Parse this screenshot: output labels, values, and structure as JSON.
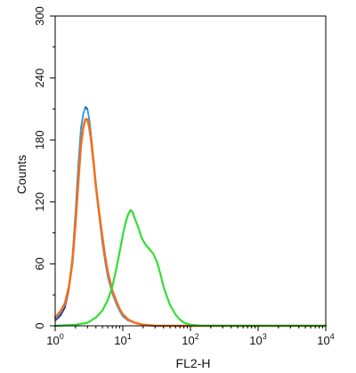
{
  "chart_data": {
    "type": "line",
    "title": "",
    "xlabel": "FL2-H",
    "ylabel": "Counts",
    "xscale": "log",
    "xlim": [
      1,
      10000
    ],
    "ylim": [
      0,
      300
    ],
    "grid": false,
    "x_ticks": [
      {
        "base": "10",
        "exp": "0",
        "value": 1
      },
      {
        "base": "10",
        "exp": "1",
        "value": 10
      },
      {
        "base": "10",
        "exp": "2",
        "value": 100
      },
      {
        "base": "10",
        "exp": "3",
        "value": 1000
      },
      {
        "base": "10",
        "exp": "4",
        "value": 10000
      }
    ],
    "y_ticks": [
      "0",
      "60",
      "120",
      "180",
      "240",
      "300"
    ],
    "series": [
      {
        "color": "#000080",
        "stroke_width": 1.4,
        "x": [
          1.0,
          1.2,
          1.4,
          1.6,
          1.8,
          2.0,
          2.2,
          2.4,
          2.6,
          2.8,
          3.0,
          3.2,
          3.4,
          3.7,
          4.0,
          4.5,
          5.0,
          5.5,
          6.0,
          7.0,
          8.0,
          9.0,
          10,
          12,
          15,
          20,
          30,
          50,
          100,
          10000
        ],
        "y": [
          5,
          10,
          18,
          35,
          65,
          110,
          155,
          190,
          205,
          212,
          210,
          200,
          185,
          160,
          135,
          105,
          80,
          62,
          48,
          32,
          22,
          15,
          10,
          6,
          3,
          1,
          0,
          0,
          0,
          0
        ]
      },
      {
        "color": "#29a0e0",
        "stroke_width": 1.6,
        "x": [
          1.0,
          1.2,
          1.4,
          1.6,
          1.8,
          2.0,
          2.2,
          2.4,
          2.6,
          2.8,
          3.0,
          3.2,
          3.4,
          3.7,
          4.0,
          4.5,
          5.0,
          5.5,
          6.0,
          7.0,
          8.0,
          9.0,
          10,
          12,
          15,
          20,
          30,
          50,
          100,
          10000
        ],
        "y": [
          6,
          12,
          20,
          38,
          68,
          112,
          158,
          192,
          206,
          211,
          209,
          199,
          184,
          158,
          133,
          104,
          79,
          61,
          47,
          31,
          21,
          14,
          9,
          5,
          3,
          1,
          0,
          0,
          0,
          0
        ]
      },
      {
        "color": "#f07020",
        "stroke_width": 2.6,
        "x": [
          1.0,
          1.2,
          1.4,
          1.6,
          1.8,
          2.0,
          2.2,
          2.4,
          2.6,
          2.8,
          3.0,
          3.2,
          3.4,
          3.7,
          4.0,
          4.5,
          5.0,
          5.5,
          6.0,
          7.0,
          8.0,
          9.0,
          10,
          12,
          15,
          20,
          30,
          50,
          100,
          10000
        ],
        "y": [
          8,
          14,
          22,
          38,
          62,
          100,
          140,
          175,
          192,
          200,
          200,
          192,
          180,
          158,
          135,
          108,
          85,
          66,
          52,
          34,
          24,
          16,
          11,
          6,
          3,
          1,
          0,
          0,
          0,
          0
        ]
      },
      {
        "color": "#33dd33",
        "stroke_width": 2.2,
        "x": [
          1.0,
          2.0,
          3.0,
          4.0,
          5.0,
          6.0,
          7.0,
          8.0,
          9.0,
          10,
          11,
          12,
          13,
          14,
          15,
          17,
          19,
          22,
          25,
          28,
          32,
          36,
          40,
          45,
          50,
          60,
          70,
          80,
          100,
          150,
          200,
          10000
        ],
        "y": [
          0,
          1,
          3,
          8,
          15,
          25,
          38,
          55,
          72,
          88,
          100,
          108,
          112,
          110,
          104,
          95,
          85,
          78,
          74,
          70,
          62,
          50,
          38,
          28,
          20,
          11,
          6,
          3,
          1,
          0,
          0,
          0
        ]
      }
    ]
  }
}
